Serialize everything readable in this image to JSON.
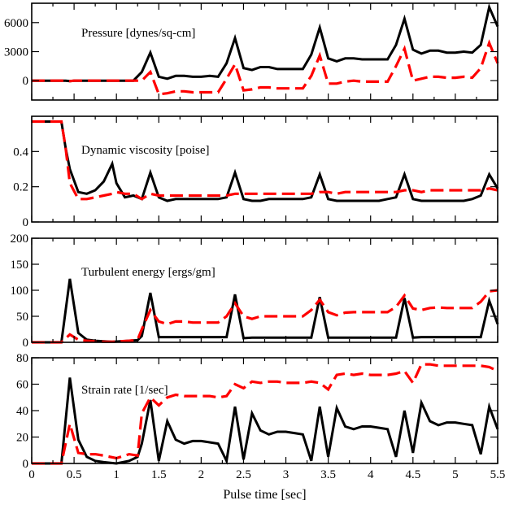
{
  "colors": {
    "series_1": "#000000",
    "series_2": "#ff0000"
  },
  "chart_data": [
    {
      "type": "line",
      "title": "Pressure [dynes/sq-cm]",
      "xlabel": "",
      "ylabel": "",
      "xlim": [
        0,
        5.5
      ],
      "ylim": [
        -2000,
        8000
      ],
      "yticks": [
        0,
        3000,
        6000
      ],
      "ytick_labels": [
        "0",
        "3000",
        "6000"
      ],
      "series": [
        {
          "name": "solid",
          "style": "solid",
          "x": [
            0,
            0.1,
            0.2,
            0.3,
            0.4,
            0.45,
            0.5,
            0.6,
            0.7,
            0.8,
            0.9,
            1.0,
            1.1,
            1.2,
            1.3,
            1.4,
            1.5,
            1.6,
            1.7,
            1.8,
            1.9,
            2.0,
            2.1,
            2.2,
            2.3,
            2.4,
            2.5,
            2.6,
            2.7,
            2.8,
            2.9,
            3.0,
            3.1,
            3.2,
            3.3,
            3.4,
            3.5,
            3.6,
            3.7,
            3.8,
            3.9,
            4.0,
            4.1,
            4.2,
            4.3,
            4.4,
            4.5,
            4.6,
            4.7,
            4.8,
            4.9,
            5.0,
            5.1,
            5.2,
            5.3,
            5.4,
            5.5
          ],
          "y": [
            0,
            0,
            0,
            0,
            0,
            -50,
            0,
            0,
            0,
            0,
            0,
            0,
            0,
            0,
            900,
            2900,
            400,
            200,
            500,
            500,
            400,
            400,
            500,
            400,
            1800,
            4400,
            1300,
            1100,
            1400,
            1400,
            1200,
            1200,
            1200,
            1200,
            2700,
            5500,
            2300,
            2000,
            2300,
            2300,
            2200,
            2200,
            2200,
            2200,
            3700,
            6400,
            3200,
            2800,
            3100,
            3100,
            2900,
            2900,
            3000,
            2900,
            3700,
            7600,
            5600
          ]
        },
        {
          "name": "dashed",
          "style": "dashed",
          "x": [
            0,
            0.1,
            0.2,
            0.3,
            0.4,
            0.45,
            0.5,
            0.6,
            0.7,
            0.8,
            0.9,
            1.0,
            1.1,
            1.2,
            1.3,
            1.4,
            1.5,
            1.6,
            1.7,
            1.8,
            1.9,
            2.0,
            2.1,
            2.2,
            2.3,
            2.4,
            2.5,
            2.6,
            2.7,
            2.8,
            2.9,
            3.0,
            3.1,
            3.2,
            3.3,
            3.4,
            3.5,
            3.6,
            3.7,
            3.8,
            3.9,
            4.0,
            4.1,
            4.2,
            4.3,
            4.4,
            4.5,
            4.6,
            4.7,
            4.8,
            4.9,
            5.0,
            5.1,
            5.2,
            5.3,
            5.4,
            5.5
          ],
          "y": [
            0,
            0,
            0,
            0,
            0,
            -50,
            0,
            0,
            0,
            0,
            0,
            0,
            0,
            0,
            0,
            900,
            -1400,
            -1300,
            -1100,
            -1100,
            -1200,
            -1200,
            -1200,
            -1200,
            200,
            1700,
            -1000,
            -900,
            -700,
            -700,
            -800,
            -800,
            -800,
            -800,
            500,
            2600,
            -300,
            -300,
            -100,
            0,
            -100,
            -100,
            -100,
            -100,
            1500,
            3300,
            0,
            200,
            400,
            400,
            300,
            300,
            400,
            300,
            1300,
            3900,
            1800
          ]
        }
      ]
    },
    {
      "type": "line",
      "title": "Dynamic viscosity [poise]",
      "xlabel": "",
      "ylabel": "",
      "xlim": [
        0,
        5.5
      ],
      "ylim": [
        0,
        0.6
      ],
      "yticks": [
        0,
        0.2,
        0.4
      ],
      "ytick_labels": [
        "0",
        "0.2",
        "0.4"
      ],
      "series": [
        {
          "name": "solid",
          "style": "solid",
          "x": [
            0,
            0.1,
            0.2,
            0.3,
            0.35,
            0.4,
            0.45,
            0.55,
            0.65,
            0.75,
            0.85,
            0.95,
            1.0,
            1.1,
            1.2,
            1.3,
            1.4,
            1.5,
            1.6,
            1.7,
            1.8,
            1.9,
            2.0,
            2.1,
            2.2,
            2.3,
            2.4,
            2.5,
            2.6,
            2.7,
            2.8,
            2.9,
            3.0,
            3.1,
            3.2,
            3.3,
            3.4,
            3.5,
            3.6,
            3.7,
            3.8,
            3.9,
            4.0,
            4.1,
            4.2,
            4.3,
            4.4,
            4.5,
            4.6,
            4.7,
            4.8,
            4.9,
            5.0,
            5.1,
            5.2,
            5.3,
            5.4,
            5.5
          ],
          "y": [
            0.57,
            0.57,
            0.57,
            0.57,
            0.57,
            0.42,
            0.3,
            0.17,
            0.16,
            0.18,
            0.23,
            0.33,
            0.22,
            0.14,
            0.15,
            0.13,
            0.28,
            0.14,
            0.12,
            0.13,
            0.13,
            0.13,
            0.13,
            0.13,
            0.13,
            0.14,
            0.28,
            0.13,
            0.12,
            0.12,
            0.13,
            0.13,
            0.13,
            0.13,
            0.13,
            0.14,
            0.27,
            0.13,
            0.12,
            0.12,
            0.12,
            0.12,
            0.12,
            0.12,
            0.13,
            0.14,
            0.27,
            0.13,
            0.12,
            0.12,
            0.12,
            0.12,
            0.12,
            0.12,
            0.13,
            0.15,
            0.27,
            0.19
          ]
        },
        {
          "name": "dashed",
          "style": "dashed",
          "x": [
            0,
            0.1,
            0.2,
            0.3,
            0.35,
            0.4,
            0.45,
            0.55,
            0.65,
            0.75,
            0.85,
            0.95,
            1.0,
            1.1,
            1.2,
            1.3,
            1.4,
            1.5,
            1.6,
            1.7,
            1.8,
            1.9,
            2.0,
            2.1,
            2.2,
            2.3,
            2.4,
            2.5,
            2.6,
            2.7,
            2.8,
            2.9,
            3.0,
            3.1,
            3.2,
            3.3,
            3.4,
            3.5,
            3.6,
            3.7,
            3.8,
            3.9,
            4.0,
            4.1,
            4.2,
            4.3,
            4.4,
            4.5,
            4.6,
            4.7,
            4.8,
            4.9,
            5.0,
            5.1,
            5.2,
            5.3,
            5.4,
            5.5
          ],
          "y": [
            0.57,
            0.57,
            0.57,
            0.57,
            0.57,
            0.42,
            0.22,
            0.13,
            0.13,
            0.14,
            0.15,
            0.16,
            0.17,
            0.16,
            0.16,
            0.13,
            0.16,
            0.15,
            0.15,
            0.15,
            0.15,
            0.15,
            0.15,
            0.15,
            0.15,
            0.15,
            0.16,
            0.16,
            0.16,
            0.16,
            0.16,
            0.16,
            0.16,
            0.16,
            0.16,
            0.16,
            0.17,
            0.17,
            0.16,
            0.17,
            0.17,
            0.17,
            0.17,
            0.17,
            0.17,
            0.17,
            0.18,
            0.18,
            0.17,
            0.18,
            0.18,
            0.18,
            0.18,
            0.18,
            0.18,
            0.18,
            0.19,
            0.18
          ]
        }
      ]
    },
    {
      "type": "line",
      "title": "Turbulent energy [ergs/gm]",
      "xlabel": "",
      "ylabel": "",
      "xlim": [
        0,
        5.5
      ],
      "ylim": [
        0,
        200
      ],
      "yticks": [
        0,
        50,
        100,
        150,
        200
      ],
      "ytick_labels": [
        "0",
        "50",
        "100",
        "150",
        "200"
      ],
      "series": [
        {
          "name": "solid",
          "style": "solid",
          "x": [
            0,
            0.1,
            0.2,
            0.3,
            0.35,
            0.45,
            0.55,
            0.65,
            0.75,
            0.85,
            0.95,
            1.05,
            1.15,
            1.25,
            1.3,
            1.4,
            1.5,
            1.6,
            1.7,
            1.8,
            1.9,
            2.0,
            2.1,
            2.2,
            2.3,
            2.4,
            2.5,
            2.6,
            2.7,
            2.8,
            2.9,
            3.0,
            3.1,
            3.2,
            3.3,
            3.4,
            3.5,
            3.6,
            3.7,
            3.8,
            3.9,
            4.0,
            4.1,
            4.2,
            4.3,
            4.4,
            4.5,
            4.6,
            4.7,
            4.8,
            4.9,
            5.0,
            5.1,
            5.2,
            5.3,
            5.4,
            5.5
          ],
          "y": [
            0,
            0,
            0,
            0,
            0,
            122,
            18,
            5,
            3,
            2,
            1,
            2,
            3,
            4,
            12,
            95,
            10,
            10,
            10,
            10,
            10,
            10,
            10,
            10,
            10,
            92,
            8,
            9,
            9,
            9,
            9,
            9,
            9,
            9,
            9,
            87,
            9,
            9,
            9,
            9,
            9,
            9,
            9,
            9,
            9,
            85,
            9,
            10,
            10,
            10,
            10,
            10,
            10,
            10,
            10,
            80,
            35
          ]
        },
        {
          "name": "dashed",
          "style": "dashed",
          "x": [
            0,
            0.1,
            0.2,
            0.3,
            0.35,
            0.45,
            0.55,
            0.65,
            0.75,
            0.85,
            0.95,
            1.05,
            1.15,
            1.25,
            1.3,
            1.4,
            1.5,
            1.6,
            1.7,
            1.8,
            1.9,
            2.0,
            2.1,
            2.2,
            2.3,
            2.4,
            2.5,
            2.6,
            2.7,
            2.8,
            2.9,
            3.0,
            3.1,
            3.2,
            3.3,
            3.4,
            3.5,
            3.6,
            3.7,
            3.8,
            3.9,
            4.0,
            4.1,
            4.2,
            4.3,
            4.4,
            4.5,
            4.6,
            4.7,
            4.8,
            4.9,
            5.0,
            5.1,
            5.2,
            5.3,
            5.4,
            5.5
          ],
          "y": [
            0,
            0,
            0,
            0,
            0,
            15,
            5,
            3,
            2,
            1,
            1,
            2,
            3,
            5,
            25,
            62,
            40,
            35,
            40,
            40,
            38,
            38,
            38,
            38,
            50,
            75,
            50,
            45,
            50,
            50,
            50,
            50,
            50,
            50,
            62,
            82,
            58,
            52,
            57,
            58,
            58,
            58,
            58,
            58,
            68,
            90,
            65,
            62,
            66,
            67,
            66,
            66,
            66,
            66,
            78,
            98,
            100
          ]
        }
      ]
    },
    {
      "type": "line",
      "title": "Strain rate [1/sec]",
      "xlabel": "Pulse time [sec]",
      "ylabel": "",
      "xlim": [
        0,
        5.5
      ],
      "ylim": [
        0,
        80
      ],
      "yticks": [
        0,
        20,
        40,
        60,
        80
      ],
      "ytick_labels": [
        "0",
        "20",
        "40",
        "60",
        "80"
      ],
      "xticks": [
        0,
        0.5,
        1,
        1.5,
        2,
        2.5,
        3,
        3.5,
        4,
        4.5,
        5,
        5.5
      ],
      "xtick_labels": [
        "0",
        "0.5",
        "1",
        "1.5",
        "2",
        "2.5",
        "3",
        "3.5",
        "4",
        "4.5",
        "5",
        "5.5"
      ],
      "series": [
        {
          "name": "solid",
          "style": "solid",
          "x": [
            0,
            0.1,
            0.2,
            0.3,
            0.35,
            0.45,
            0.55,
            0.65,
            0.75,
            0.85,
            1.0,
            1.15,
            1.25,
            1.3,
            1.4,
            1.5,
            1.6,
            1.7,
            1.8,
            1.9,
            2.0,
            2.1,
            2.2,
            2.3,
            2.4,
            2.5,
            2.6,
            2.7,
            2.8,
            2.9,
            3.0,
            3.1,
            3.2,
            3.3,
            3.4,
            3.5,
            3.6,
            3.7,
            3.8,
            3.9,
            4.0,
            4.1,
            4.2,
            4.3,
            4.4,
            4.5,
            4.6,
            4.7,
            4.8,
            4.9,
            5.0,
            5.1,
            5.2,
            5.3,
            5.4,
            5.5
          ],
          "y": [
            0,
            0,
            0,
            0,
            0,
            65,
            18,
            5,
            2,
            1,
            0,
            2,
            5,
            15,
            48,
            2,
            32,
            18,
            15,
            17,
            17,
            16,
            15,
            2,
            43,
            3,
            38,
            25,
            22,
            24,
            24,
            23,
            22,
            2,
            43,
            5,
            42,
            28,
            26,
            28,
            28,
            27,
            26,
            5,
            40,
            8,
            46,
            32,
            29,
            31,
            31,
            30,
            29,
            7,
            43,
            26
          ]
        },
        {
          "name": "dashed",
          "style": "dashed",
          "x": [
            0,
            0.1,
            0.2,
            0.3,
            0.35,
            0.45,
            0.55,
            0.65,
            0.75,
            0.85,
            1.0,
            1.15,
            1.25,
            1.3,
            1.4,
            1.5,
            1.6,
            1.7,
            1.8,
            1.9,
            2.0,
            2.1,
            2.2,
            2.3,
            2.4,
            2.5,
            2.6,
            2.7,
            2.8,
            2.9,
            3.0,
            3.1,
            3.2,
            3.3,
            3.4,
            3.5,
            3.6,
            3.7,
            3.8,
            3.9,
            4.0,
            4.1,
            4.2,
            4.3,
            4.4,
            4.5,
            4.6,
            4.7,
            4.8,
            4.9,
            5.0,
            5.1,
            5.2,
            5.3,
            5.4,
            5.5
          ],
          "y": [
            0,
            0,
            0,
            0,
            0,
            30,
            8,
            7,
            7,
            6,
            4,
            7,
            6,
            38,
            50,
            44,
            50,
            52,
            51,
            51,
            51,
            51,
            50,
            51,
            60,
            57,
            62,
            61,
            62,
            62,
            61,
            61,
            61,
            62,
            61,
            56,
            67,
            68,
            67,
            68,
            67,
            67,
            67,
            68,
            70,
            61,
            75,
            75,
            74,
            74,
            74,
            74,
            74,
            74,
            73,
            70
          ]
        }
      ]
    }
  ]
}
